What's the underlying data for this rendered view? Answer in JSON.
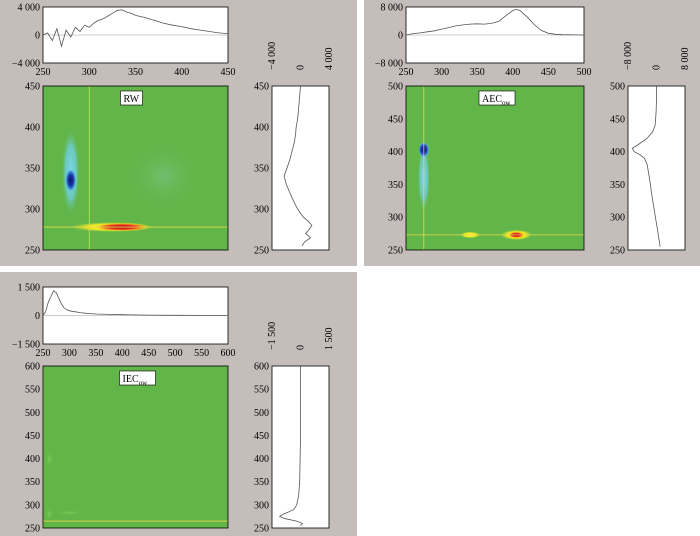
{
  "colors": {
    "panel_bg": "#c4bdba",
    "map_bg": "#62b548",
    "peak_red": "#e02020",
    "peak_yellow": "#f2ea1a",
    "peak_blue": "#1a2f9e",
    "peak_cyan": "#6fd0ea",
    "crosshair": "#e6d84a",
    "trace": "#555555"
  },
  "chart_data": [
    {
      "type": "heatmap",
      "panel": "RW",
      "label": "RW",
      "label_sub": "",
      "xlim": [
        250,
        450
      ],
      "ylim": [
        250,
        450
      ],
      "x_ticks": [
        "250",
        "300",
        "350",
        "400",
        "450"
      ],
      "y_ticks": [
        "250",
        "300",
        "350",
        "400",
        "450"
      ],
      "cross_x": 300,
      "cross_y": 278,
      "peaks": [
        {
          "x": 335,
          "y": 278,
          "sx": 30,
          "sy": 5,
          "color": "red",
          "level": 1.0
        },
        {
          "x": 325,
          "y": 278,
          "sx": 45,
          "sy": 6,
          "color": "yellow",
          "level": 0.6
        },
        {
          "x": 280,
          "y": 335,
          "sx": 6,
          "sy": 14,
          "color": "blue",
          "level": 1.0
        },
        {
          "x": 280,
          "y": 345,
          "sx": 10,
          "sy": 55,
          "color": "cyan",
          "level": 0.4
        }
      ],
      "top_trace": {
        "ylim": [
          -4000,
          4000
        ],
        "y_ticks": [
          "4 000",
          "0",
          "−4 000"
        ],
        "x": [
          250,
          255,
          260,
          265,
          270,
          275,
          280,
          285,
          290,
          295,
          300,
          305,
          310,
          315,
          320,
          325,
          330,
          335,
          340,
          345,
          350,
          360,
          370,
          380,
          390,
          400,
          410,
          420,
          430,
          440,
          450
        ],
        "y": [
          0,
          300,
          -800,
          900,
          -1600,
          700,
          -300,
          1100,
          500,
          1400,
          1100,
          1700,
          2100,
          2300,
          2700,
          3100,
          3500,
          3600,
          3300,
          3100,
          2800,
          2500,
          2100,
          1700,
          1400,
          1200,
          900,
          700,
          500,
          300,
          200
        ]
      },
      "side_trace": {
        "xlim": [
          -4000,
          4000
        ],
        "x_ticks": [
          "−4 000",
          "0",
          "4 000"
        ],
        "em": [
          450,
          440,
          430,
          420,
          410,
          400,
          390,
          380,
          370,
          360,
          350,
          340,
          330,
          320,
          310,
          300,
          290,
          285,
          280,
          275,
          270,
          265,
          260,
          255
        ],
        "v": [
          0,
          -100,
          -200,
          -300,
          -400,
          -600,
          -700,
          -900,
          -1200,
          -1500,
          -1900,
          -2300,
          -2000,
          -1500,
          -1000,
          -400,
          400,
          1100,
          1600,
          1200,
          700,
          1400,
          600,
          200
        ]
      }
    },
    {
      "type": "heatmap",
      "panel": "AEC",
      "label": "AEC",
      "label_sub": "ow",
      "xlim": [
        250,
        500
      ],
      "ylim": [
        250,
        500
      ],
      "x_ticks": [
        "250",
        "300",
        "350",
        "400",
        "450",
        "500"
      ],
      "y_ticks": [
        "250",
        "300",
        "350",
        "400",
        "450",
        "500"
      ],
      "cross_x": 275,
      "cross_y": 273,
      "peaks": [
        {
          "x": 405,
          "y": 273,
          "sx": 12,
          "sy": 5,
          "color": "red",
          "level": 1.0
        },
        {
          "x": 405,
          "y": 273,
          "sx": 22,
          "sy": 8,
          "color": "yellow",
          "level": 0.6
        },
        {
          "x": 340,
          "y": 273,
          "sx": 14,
          "sy": 5,
          "color": "yellow",
          "level": 0.6
        },
        {
          "x": 275,
          "y": 403,
          "sx": 8,
          "sy": 12,
          "color": "blue",
          "level": 1.0
        },
        {
          "x": 275,
          "y": 360,
          "sx": 9,
          "sy": 55,
          "color": "cyan",
          "level": 0.4
        }
      ],
      "top_trace": {
        "ylim": [
          -8000,
          8000
        ],
        "y_ticks": [
          "8 000",
          "0",
          "−8 000"
        ],
        "x": [
          250,
          260,
          270,
          280,
          290,
          300,
          310,
          320,
          330,
          340,
          350,
          360,
          370,
          380,
          390,
          400,
          405,
          410,
          420,
          430,
          440,
          450,
          460,
          470,
          480,
          490,
          500
        ],
        "y": [
          0,
          400,
          600,
          900,
          1200,
          1700,
          2100,
          2600,
          2900,
          3100,
          3200,
          3100,
          3300,
          3900,
          5500,
          7000,
          7300,
          7000,
          5200,
          3000,
          1300,
          500,
          200,
          100,
          50,
          20,
          0
        ]
      },
      "side_trace": {
        "xlim": [
          -8000,
          8000
        ],
        "x_ticks": [
          "−8 000",
          "0",
          "8 000"
        ],
        "em": [
          500,
          480,
          460,
          440,
          430,
          420,
          410,
          405,
          400,
          395,
          390,
          380,
          370,
          360,
          350,
          340,
          330,
          320,
          310,
          300,
          290,
          280,
          270,
          260,
          255
        ],
        "v": [
          0,
          0,
          -100,
          -400,
          -1100,
          -2700,
          -5300,
          -6800,
          -6300,
          -4600,
          -3400,
          -2600,
          -2300,
          -2000,
          -1700,
          -1500,
          -1200,
          -900,
          -600,
          -300,
          0,
          300,
          600,
          900,
          1000
        ]
      }
    },
    {
      "type": "heatmap",
      "panel": "IEC",
      "label": "IEC",
      "label_sub": "ow",
      "xlim": [
        250,
        600
      ],
      "ylim": [
        250,
        600
      ],
      "x_ticks": [
        "250",
        "300",
        "350",
        "400",
        "450",
        "500",
        "550",
        "600"
      ],
      "y_ticks": [
        "250",
        "300",
        "350",
        "400",
        "450",
        "500",
        "550",
        "600"
      ],
      "cross_x": 250,
      "cross_y": 265,
      "peaks": [
        {
          "x": 262,
          "y": 280,
          "sx": 8,
          "sy": 14,
          "color": "faint",
          "level": 0.3
        },
        {
          "x": 300,
          "y": 283,
          "sx": 30,
          "sy": 6,
          "color": "faint",
          "level": 0.25
        },
        {
          "x": 262,
          "y": 400,
          "sx": 7,
          "sy": 20,
          "color": "faint",
          "level": 0.2
        }
      ],
      "top_trace": {
        "ylim": [
          -1500,
          1500
        ],
        "y_ticks": [
          "1 500",
          "0",
          "−1 500"
        ],
        "x": [
          250,
          255,
          260,
          265,
          270,
          275,
          280,
          285,
          290,
          295,
          300,
          310,
          320,
          330,
          340,
          350,
          375,
          400,
          450,
          500,
          550,
          600
        ],
        "y": [
          0,
          200,
          700,
          1000,
          1300,
          1200,
          900,
          600,
          400,
          300,
          250,
          200,
          150,
          120,
          100,
          80,
          60,
          40,
          20,
          10,
          5,
          0
        ]
      },
      "side_trace": {
        "xlim": [
          -1500,
          1500
        ],
        "x_ticks": [
          "−1 500",
          "0",
          "1 500"
        ],
        "em": [
          600,
          550,
          500,
          450,
          400,
          350,
          320,
          300,
          290,
          285,
          280,
          275,
          270,
          265,
          260,
          255
        ],
        "v": [
          0,
          0,
          0,
          0,
          -20,
          -40,
          -100,
          -200,
          -350,
          -600,
          -900,
          -1100,
          -800,
          -200,
          100,
          0
        ]
      }
    }
  ]
}
